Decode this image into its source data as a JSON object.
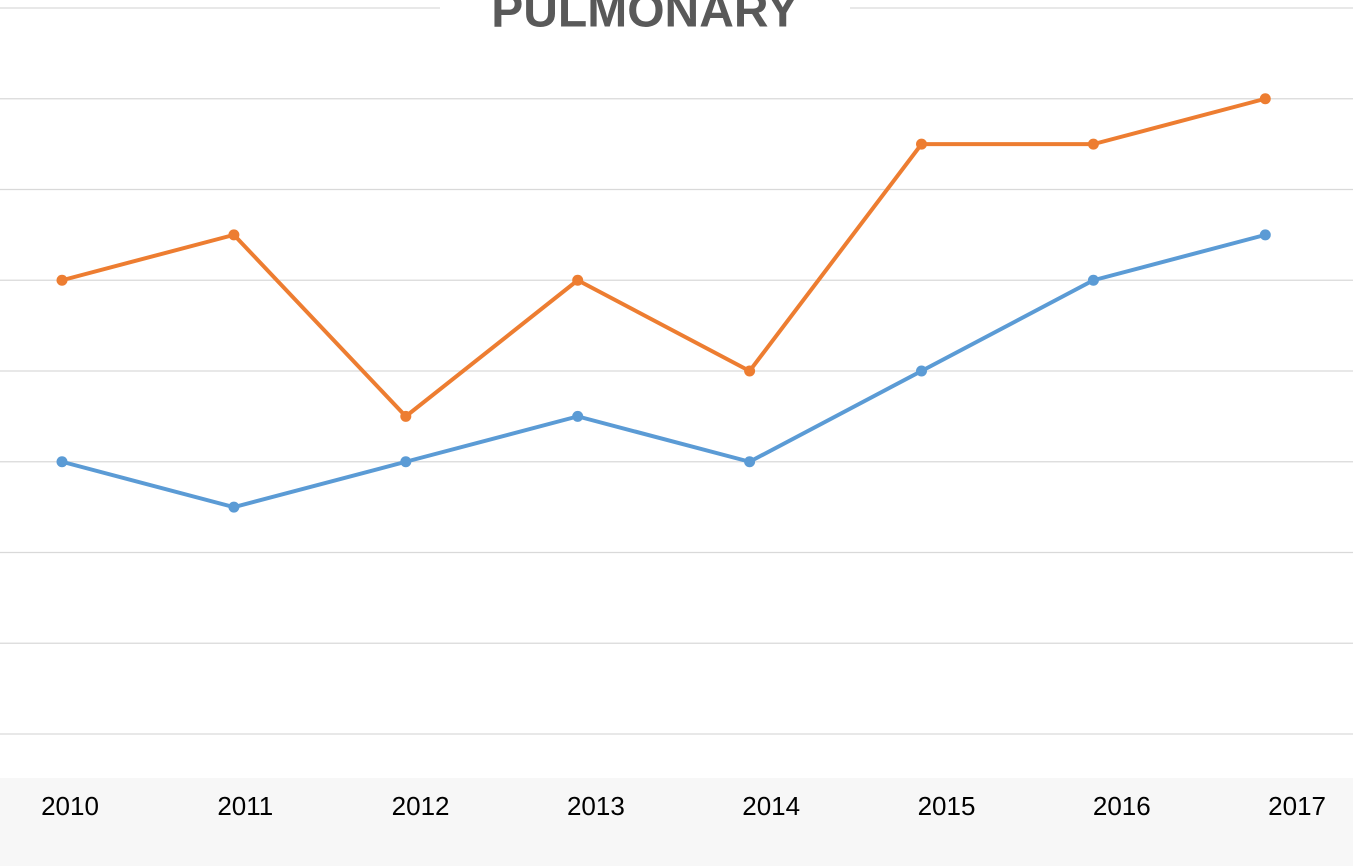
{
  "chart_data": {
    "type": "line",
    "title": "PULMONARY",
    "categories": [
      "2010",
      "2011",
      "2012",
      "2013",
      "2014",
      "2015",
      "2016",
      "2017"
    ],
    "series": [
      {
        "color": "#5b9bd5",
        "values": [
          3,
          2.5,
          3,
          3.5,
          3,
          4,
          5,
          5.5
        ]
      },
      {
        "color": "#ed7d31",
        "values": [
          5,
          5.5,
          3.5,
          5,
          4,
          6.5,
          6.5,
          7
        ]
      }
    ],
    "ylim": [
      0,
      8
    ],
    "yticks": [
      0,
      1,
      2,
      3,
      4,
      5,
      6,
      7,
      8
    ],
    "grid": true
  }
}
